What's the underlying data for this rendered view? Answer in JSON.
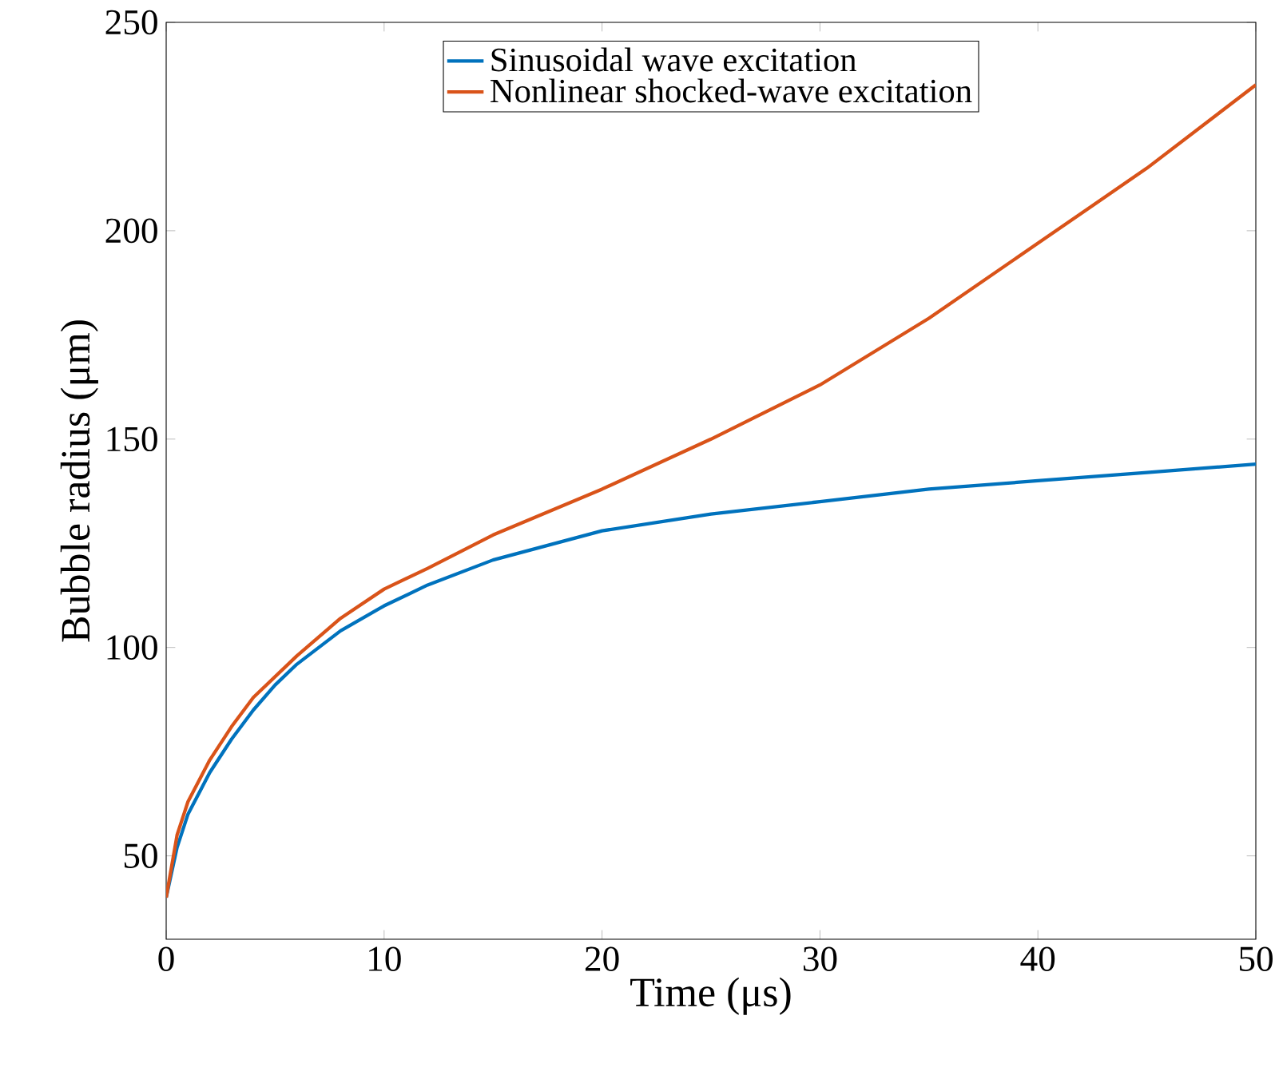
{
  "chart_data": {
    "type": "line",
    "xlabel": "Time (μs)",
    "ylabel": "Bubble radius (μm)",
    "xlim": [
      0,
      50
    ],
    "ylim": [
      30,
      250
    ],
    "xticks": [
      0,
      10,
      20,
      30,
      40,
      50
    ],
    "yticks": [
      50,
      100,
      150,
      200,
      250
    ],
    "legend": "top",
    "grid": false,
    "marker": "none",
    "line_style": "solid",
    "series": [
      {
        "name": "Sinusoidal wave excitation",
        "color": "#0072bd",
        "x": [
          0,
          0.5,
          1,
          2,
          3,
          4,
          5,
          6,
          8,
          10,
          12,
          15,
          20,
          25,
          30,
          35,
          40,
          45,
          50
        ],
        "values": [
          40,
          52,
          60,
          70,
          78,
          85,
          91,
          96,
          104,
          110,
          115,
          121,
          128,
          132,
          135,
          138,
          140,
          142,
          144
        ]
      },
      {
        "name": "Nonlinear shocked-wave excitation",
        "color": "#d95319",
        "x": [
          0,
          0.5,
          1,
          2,
          3,
          4,
          5,
          6,
          8,
          10,
          12,
          15,
          20,
          25,
          30,
          35,
          40,
          45,
          50
        ],
        "values": [
          40,
          55,
          63,
          73,
          81,
          88,
          93,
          98,
          107,
          114,
          119,
          127,
          138,
          150,
          163,
          179,
          197,
          215,
          235
        ]
      }
    ]
  }
}
